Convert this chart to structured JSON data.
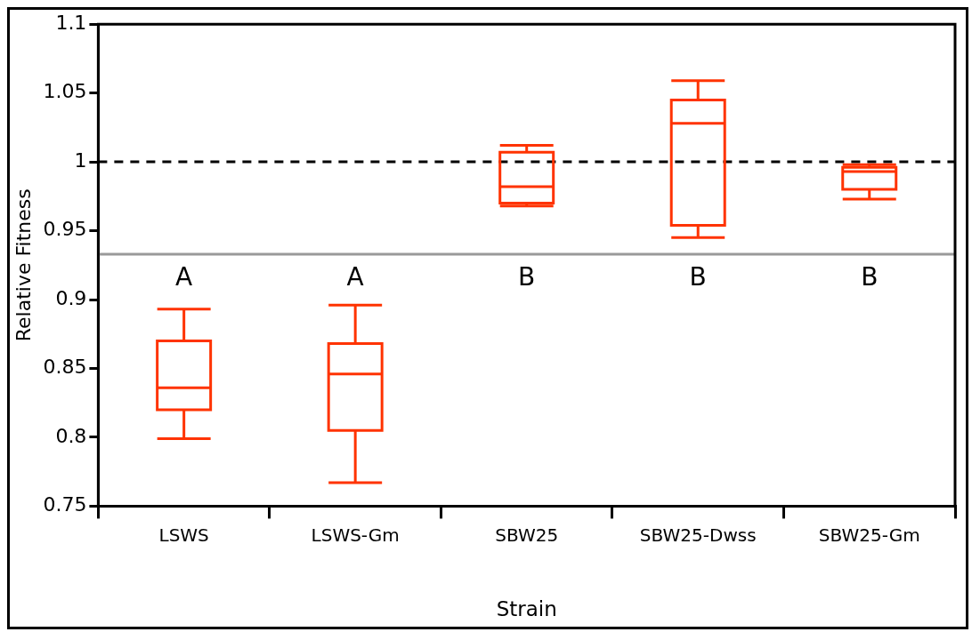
{
  "chart_data": {
    "type": "box",
    "xlabel": "Strain",
    "ylabel": "Relative Fitness",
    "categories": [
      "LSWS",
      "LSWS-Gm",
      "SBW25",
      "SBW25-Dwss",
      "SBW25-Gm"
    ],
    "series": [
      {
        "color": "#ff3300",
        "boxes": [
          {
            "low": 0.799,
            "q1": 0.82,
            "median": 0.836,
            "q3": 0.87,
            "high": 0.893
          },
          {
            "low": 0.767,
            "q1": 0.805,
            "median": 0.846,
            "q3": 0.868,
            "high": 0.896
          },
          {
            "low": 0.968,
            "q1": 0.97,
            "median": 0.982,
            "q3": 1.007,
            "high": 1.012
          },
          {
            "low": 0.945,
            "q1": 0.954,
            "median": 1.028,
            "q3": 1.045,
            "high": 1.059
          },
          {
            "low": 0.973,
            "q1": 0.98,
            "median": 0.993,
            "q3": 0.996,
            "high": 0.998
          }
        ]
      }
    ],
    "ylim": [
      0.75,
      1.1
    ],
    "yticks": [
      0.75,
      0.8,
      0.85,
      0.9,
      0.95,
      1,
      1.05,
      1.1
    ],
    "ref_lines": [
      {
        "axis": "y",
        "value": 1,
        "color": "#000000",
        "line_style": "dashed"
      },
      {
        "axis": "y",
        "value": 0.933,
        "color": "#999999",
        "line_style": "solid"
      }
    ],
    "annotations": [
      "A",
      "A",
      "B",
      "B",
      "B"
    ],
    "grid": false,
    "legend": false
  }
}
